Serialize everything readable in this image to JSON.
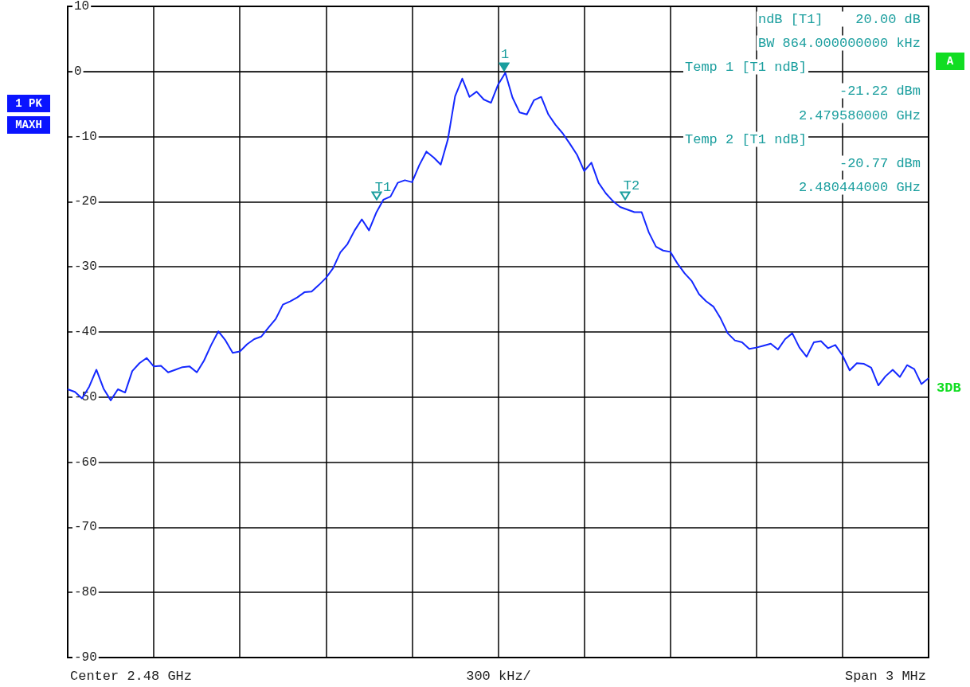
{
  "chart_data": {
    "type": "line",
    "categories": [
      null,
      null,
      null,
      null,
      null,
      null,
      null,
      null,
      null,
      null,
      null,
      null,
      null,
      null,
      null,
      null,
      null,
      null,
      null,
      null,
      null,
      null,
      null,
      null,
      null,
      null,
      null,
      null,
      null,
      null,
      null,
      null,
      null,
      null,
      null,
      null,
      null,
      null,
      null,
      null,
      null,
      null,
      null,
      null,
      null,
      null,
      null,
      null,
      null,
      null,
      null,
      null,
      null,
      null,
      null,
      null,
      null,
      null,
      null,
      null,
      null,
      null,
      null,
      null,
      null,
      null,
      null,
      null,
      null,
      null,
      null,
      null,
      null,
      null,
      null,
      null,
      null,
      null,
      null,
      null,
      null,
      null,
      null,
      null,
      null,
      null,
      null,
      null,
      null,
      null,
      null,
      null,
      null,
      null,
      null,
      null,
      null,
      null,
      null,
      null,
      null,
      null,
      null,
      null,
      null,
      null,
      null,
      null,
      null,
      null,
      null,
      null,
      null,
      null,
      null,
      null,
      null,
      null,
      null,
      null,
      null
    ],
    "series": [
      {
        "color": "#1428ff",
        "values": [
          -48.8,
          -49.2,
          -50.2,
          -48.4,
          -45.8,
          -48.7,
          -50.5,
          -48.8,
          -49.3,
          -46.0,
          -44.8,
          -44.0,
          -45.3,
          -45.2,
          -46.2,
          -45.8,
          -45.4,
          -45.3,
          -46.2,
          -44.4,
          -42.0,
          -39.9,
          -41.3,
          -43.2,
          -43.0,
          -41.9,
          -41.1,
          -40.7,
          -39.3,
          -38.0,
          -35.8,
          -35.3,
          -34.7,
          -33.9,
          -33.8,
          -32.8,
          -31.7,
          -30.2,
          -27.8,
          -26.5,
          -24.4,
          -22.7,
          -24.4,
          -21.7,
          -19.7,
          -19.2,
          -17.1,
          -16.7,
          -17.0,
          -14.4,
          -12.3,
          -13.2,
          -14.3,
          -10.4,
          -3.8,
          -1.1,
          -3.9,
          -3.1,
          -4.3,
          -4.8,
          -2.0,
          -0.2,
          -4.0,
          -6.3,
          -6.6,
          -4.4,
          -3.9,
          -6.6,
          -8.2,
          -9.5,
          -11.1,
          -12.8,
          -15.3,
          -14.0,
          -17.1,
          -18.7,
          -19.9,
          -20.8,
          -21.2,
          -21.6,
          -21.6,
          -24.7,
          -26.9,
          -27.5,
          -27.7,
          -29.5,
          -31.0,
          -32.2,
          -34.2,
          -35.3,
          -36.1,
          -37.9,
          -40.2,
          -41.3,
          -41.6,
          -42.6,
          -42.4,
          -42.1,
          -41.8,
          -42.7,
          -41.1,
          -40.2,
          -42.4,
          -43.8,
          -41.6,
          -41.4,
          -42.5,
          -42.0,
          -43.6,
          -45.9,
          -44.8,
          -44.9,
          -45.5,
          -48.2,
          -46.8,
          -45.8,
          -46.9,
          -45.1,
          -45.7,
          -48.0,
          -47.1
        ]
      }
    ],
    "ylim": [
      -90,
      10
    ],
    "yticks": [
      -90,
      -80,
      -70,
      -60,
      -50,
      -40,
      -30,
      -20,
      -10,
      0,
      10
    ],
    "tick_labels": "y",
    "grid": true,
    "marker": "none",
    "line_style": "solid",
    "annotations": [
      "ndB [T1]    20.00 dB",
      "BW 864.000000000 kHz",
      "Temp 1 [T1 ndB]",
      "-21.22 dBm",
      "2.479580000 GHz",
      "Temp 2 [T1 ndB]",
      "-20.77 dBm",
      "2.480444000 GHz",
      "1 PK",
      "MAXH",
      "A",
      "3DB",
      "Center 2.48 GHz",
      "300 kHz/",
      "Span 3 MHz",
      "1",
      "T1",
      "T2"
    ]
  }
}
